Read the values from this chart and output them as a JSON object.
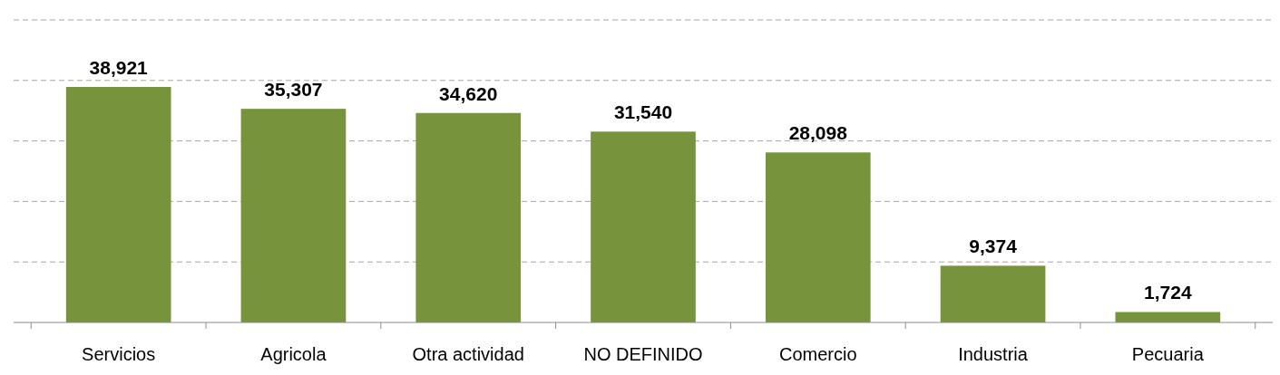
{
  "chart_data": {
    "type": "bar",
    "categories": [
      "Servicios",
      "Agricola",
      "Otra actividad",
      "NO DEFINIDO",
      "Comercio",
      "Industria",
      "Pecuaria"
    ],
    "values": [
      38921,
      35307,
      34620,
      31540,
      28098,
      9374,
      1724
    ],
    "value_labels": [
      "38,921",
      "35,307",
      "34,620",
      "31,540",
      "28,098",
      "9,374",
      "1,724"
    ],
    "color": "#77933c",
    "ylim": [
      0,
      50000
    ],
    "yticks": [
      {
        "value": 0,
        "label": null
      },
      {
        "value": 10000,
        "label": null
      },
      {
        "value": 20000,
        "label": null
      },
      {
        "value": 30000,
        "label": null
      },
      {
        "value": 40000,
        "label": null
      },
      {
        "value": 50000,
        "label": null
      }
    ],
    "grid": "y",
    "tick_labels": "x"
  }
}
